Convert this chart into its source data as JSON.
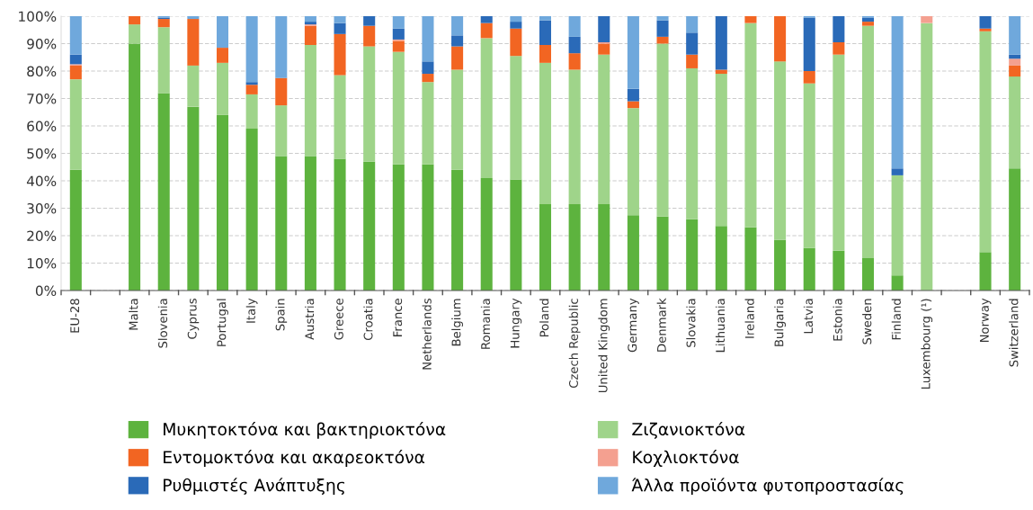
{
  "chart_data": {
    "type": "bar",
    "stacked": true,
    "categories": [
      "EU-28",
      null,
      "Malta",
      "Slovenia",
      "Cyprus",
      "Portugal",
      "Italy",
      "Spain",
      "Austria",
      "Greece",
      "Croatia",
      "France",
      "Netherlands",
      "Belgium",
      "Romania",
      "Hungary",
      "Poland",
      "Czech Republic",
      "United Kingdom",
      "Germany",
      "Denmark",
      "Slovakia",
      "Lithuania",
      "Ireland",
      "Bulgaria",
      "Latvia",
      "Estonia",
      "Sweden",
      "Finland",
      "Luxembourg (¹)",
      null,
      "Norway",
      "Switzerland"
    ],
    "series": [
      {
        "name": "Μυκητοκτόνα και βακτηριοκτόνα",
        "color": "#5db33e",
        "values": [
          44,
          null,
          90,
          72,
          67,
          64,
          59,
          49,
          49,
          48,
          47,
          46,
          46,
          44,
          41,
          40.5,
          31.5,
          31.5,
          31.5,
          27.5,
          27,
          26,
          23.5,
          23,
          18.5,
          15.5,
          14.5,
          12,
          5.5,
          0,
          null,
          14,
          44.5
        ]
      },
      {
        "name": "Ζιζανιοκτόνα",
        "color": "#9fd48a",
        "values": [
          33,
          null,
          7,
          24,
          15,
          19,
          12.5,
          18.5,
          40.5,
          30.5,
          42,
          41,
          30,
          36.5,
          51,
          45,
          51.5,
          49,
          54.5,
          39,
          63,
          55,
          55.5,
          74.5,
          65,
          60,
          71.5,
          84.5,
          36.5,
          97.5,
          null,
          80.5,
          33.5
        ]
      },
      {
        "name": "Εντομοκτόνα και ακαρεοκτόνα",
        "color": "#f26522",
        "values": [
          5,
          null,
          3,
          3,
          17,
          5.5,
          3.5,
          10,
          7,
          15,
          7.5,
          4,
          3,
          8.5,
          5.5,
          10,
          6.5,
          6,
          4,
          2.5,
          2.5,
          5,
          1.5,
          2.5,
          16.5,
          4.5,
          4.5,
          1.5,
          0,
          0,
          null,
          1,
          4
        ]
      },
      {
        "name": "Κοχλιοκτόνα",
        "color": "#f4a090",
        "values": [
          0.5,
          null,
          0,
          0,
          0,
          0,
          0,
          0,
          0.5,
          0,
          0,
          0.5,
          0,
          0,
          0,
          0,
          0,
          0,
          0.5,
          0,
          0,
          0,
          0,
          0,
          0,
          0,
          0,
          0,
          0,
          2.5,
          null,
          0,
          2.5
        ]
      },
      {
        "name": "Ρυθμιστές Ανάπτυξης",
        "color": "#2a6ab8",
        "values": [
          3.5,
          null,
          0,
          0.5,
          0,
          0,
          1,
          0,
          1,
          4,
          3.5,
          4,
          4.5,
          4,
          2.5,
          2.5,
          9,
          6,
          9.5,
          4.5,
          6,
          8,
          19.5,
          0,
          0,
          19.5,
          9.5,
          1.5,
          2.5,
          0,
          null,
          4.5,
          1.5
        ]
      },
      {
        "name": "Άλλα προϊόντα φυτοπροστασίας",
        "color": "#6fa8dc",
        "values": [
          14,
          null,
          0,
          0.5,
          1,
          11.5,
          24,
          22.5,
          2,
          2.5,
          0,
          4.5,
          16.5,
          7,
          0,
          2,
          1.5,
          7.5,
          0,
          26.5,
          1.5,
          6,
          0,
          0,
          0,
          0.5,
          0,
          0.5,
          55.5,
          0,
          null,
          0,
          14
        ]
      }
    ],
    "ylim": [
      0,
      100
    ],
    "yticks": [
      {
        "value": 0,
        "label": "0%"
      },
      {
        "value": 10,
        "label": "10%"
      },
      {
        "value": 20,
        "label": "20%"
      },
      {
        "value": 30,
        "label": "30%"
      },
      {
        "value": 40,
        "label": "40%"
      },
      {
        "value": 50,
        "label": "50%"
      },
      {
        "value": 60,
        "label": "60%"
      },
      {
        "value": 70,
        "label": "70%"
      },
      {
        "value": 80,
        "label": "80%"
      },
      {
        "value": 90,
        "label": "90%"
      },
      {
        "value": 100,
        "label": "100%"
      }
    ],
    "grid": "y",
    "legend": "bottom"
  }
}
